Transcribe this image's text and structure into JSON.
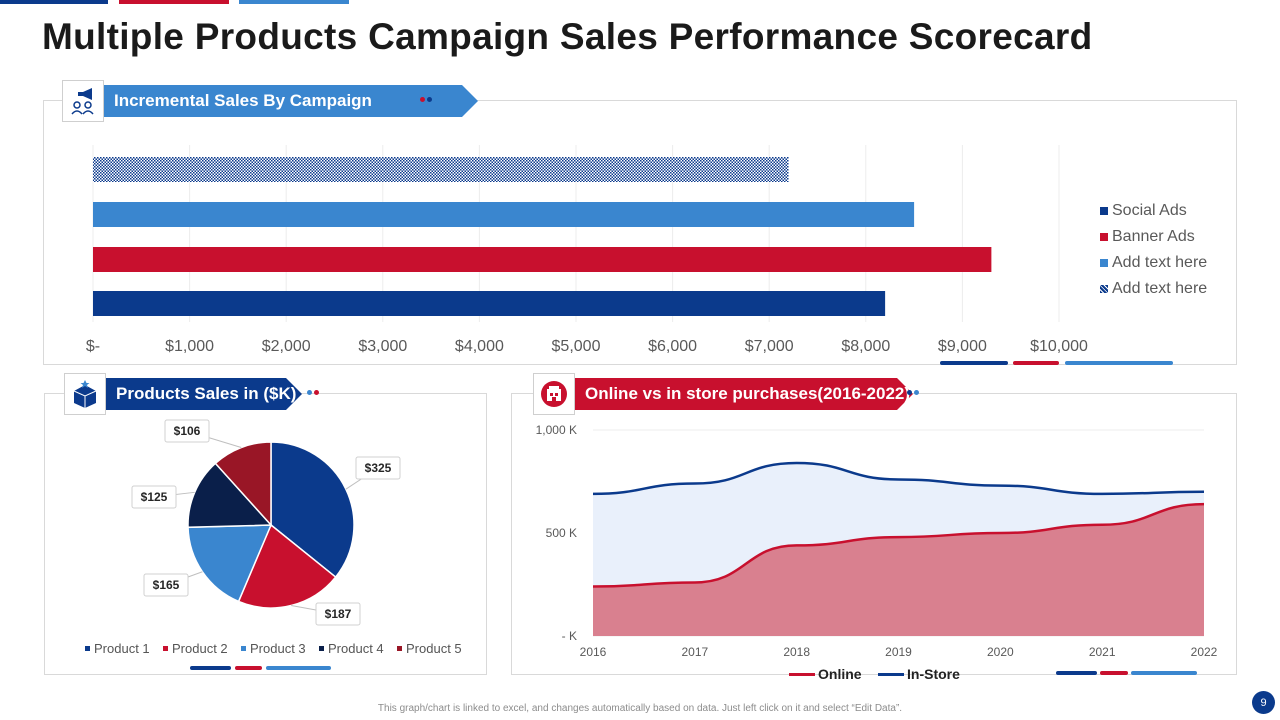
{
  "title": "Multiple Products Campaign Sales Performance Scorecard",
  "colors": {
    "navy": "#0b3a8c",
    "red": "#c8102e",
    "blue": "#3a86cf",
    "darknavy": "#0a1f4a",
    "maroon": "#991626",
    "light_area": "#e9f0fb",
    "pink_area": "#d9808f"
  },
  "panels": {
    "bar": {
      "header": "Incremental Sales By Campaign",
      "icon": "megaphone-people-icon"
    },
    "pie": {
      "header": "Products Sales in ($K)",
      "icon": "box-star-icon"
    },
    "area": {
      "header": "Online vs in store purchases(2016-2022)",
      "icon": "store-icon"
    }
  },
  "chart_data": [
    {
      "type": "bar",
      "orientation": "horizontal",
      "title": "Incremental Sales By Campaign",
      "series": [
        {
          "name": "Social Ads",
          "value": 8200,
          "color": "#0b3a8c",
          "pattern": "solid"
        },
        {
          "name": "Banner Ads",
          "value": 9300,
          "color": "#c8102e",
          "pattern": "solid"
        },
        {
          "name": "Add text here",
          "value": 8500,
          "color": "#3a86cf",
          "pattern": "solid"
        },
        {
          "name": "Add text here",
          "value": 7200,
          "color": "#0b3a8c",
          "pattern": "checker"
        }
      ],
      "x_ticks": [
        "$-",
        "$1,000",
        "$2,000",
        "$3,000",
        "$4,000",
        "$5,000",
        "$6,000",
        "$7,000",
        "$8,000",
        "$9,000",
        "$10,000"
      ],
      "xlim": [
        0,
        10000
      ],
      "legend": [
        "Social Ads",
        "Banner Ads",
        "Add text here",
        "Add text here"
      ]
    },
    {
      "type": "pie",
      "title": "Products Sales in ($K)",
      "slices": [
        {
          "name": "Product 1",
          "value": 325,
          "label": "$325",
          "color": "#0b3a8c"
        },
        {
          "name": "Product 2",
          "value": 187,
          "label": "$187",
          "color": "#c8102e"
        },
        {
          "name": "Product 3",
          "value": 165,
          "label": "$165",
          "color": "#3a86cf"
        },
        {
          "name": "Product 4",
          "value": 125,
          "label": "$125",
          "color": "#0a1f4a"
        },
        {
          "name": "Product 5",
          "value": 106,
          "label": "$106",
          "color": "#991626"
        }
      ]
    },
    {
      "type": "area",
      "title": "Online vs in store purchases(2016-2022)",
      "x": [
        "2016",
        "2017",
        "2018",
        "2019",
        "2020",
        "2021",
        "2022"
      ],
      "series": [
        {
          "name": "In-Store",
          "values": [
            690,
            740,
            840,
            760,
            730,
            690,
            700
          ],
          "color": "#0b3a8c"
        },
        {
          "name": "Online",
          "values": [
            240,
            260,
            440,
            480,
            500,
            540,
            640
          ],
          "color": "#c8102e"
        }
      ],
      "y_ticks": [
        "- K",
        "500 K",
        "1,000 K"
      ],
      "ylim": [
        0,
        1000
      ],
      "legend": [
        "Online",
        "In-Store"
      ]
    }
  ],
  "footer": "This graph/chart is linked to excel, and changes automatically based on data. Just left click on it and select “Edit Data”.",
  "page_number": "9"
}
